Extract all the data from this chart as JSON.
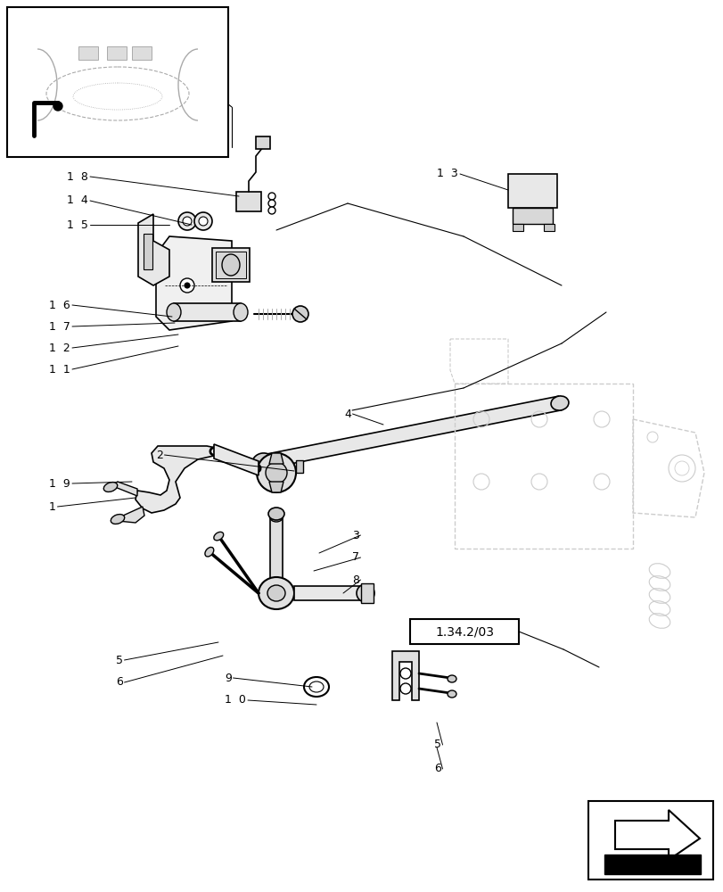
{
  "bg_color": "#ffffff",
  "lc": "#000000",
  "mgray": "#aaaaaa",
  "lgray": "#cccccc",
  "dgray": "#888888",
  "figsize": [
    8.12,
    10.0
  ],
  "dpi": 100
}
